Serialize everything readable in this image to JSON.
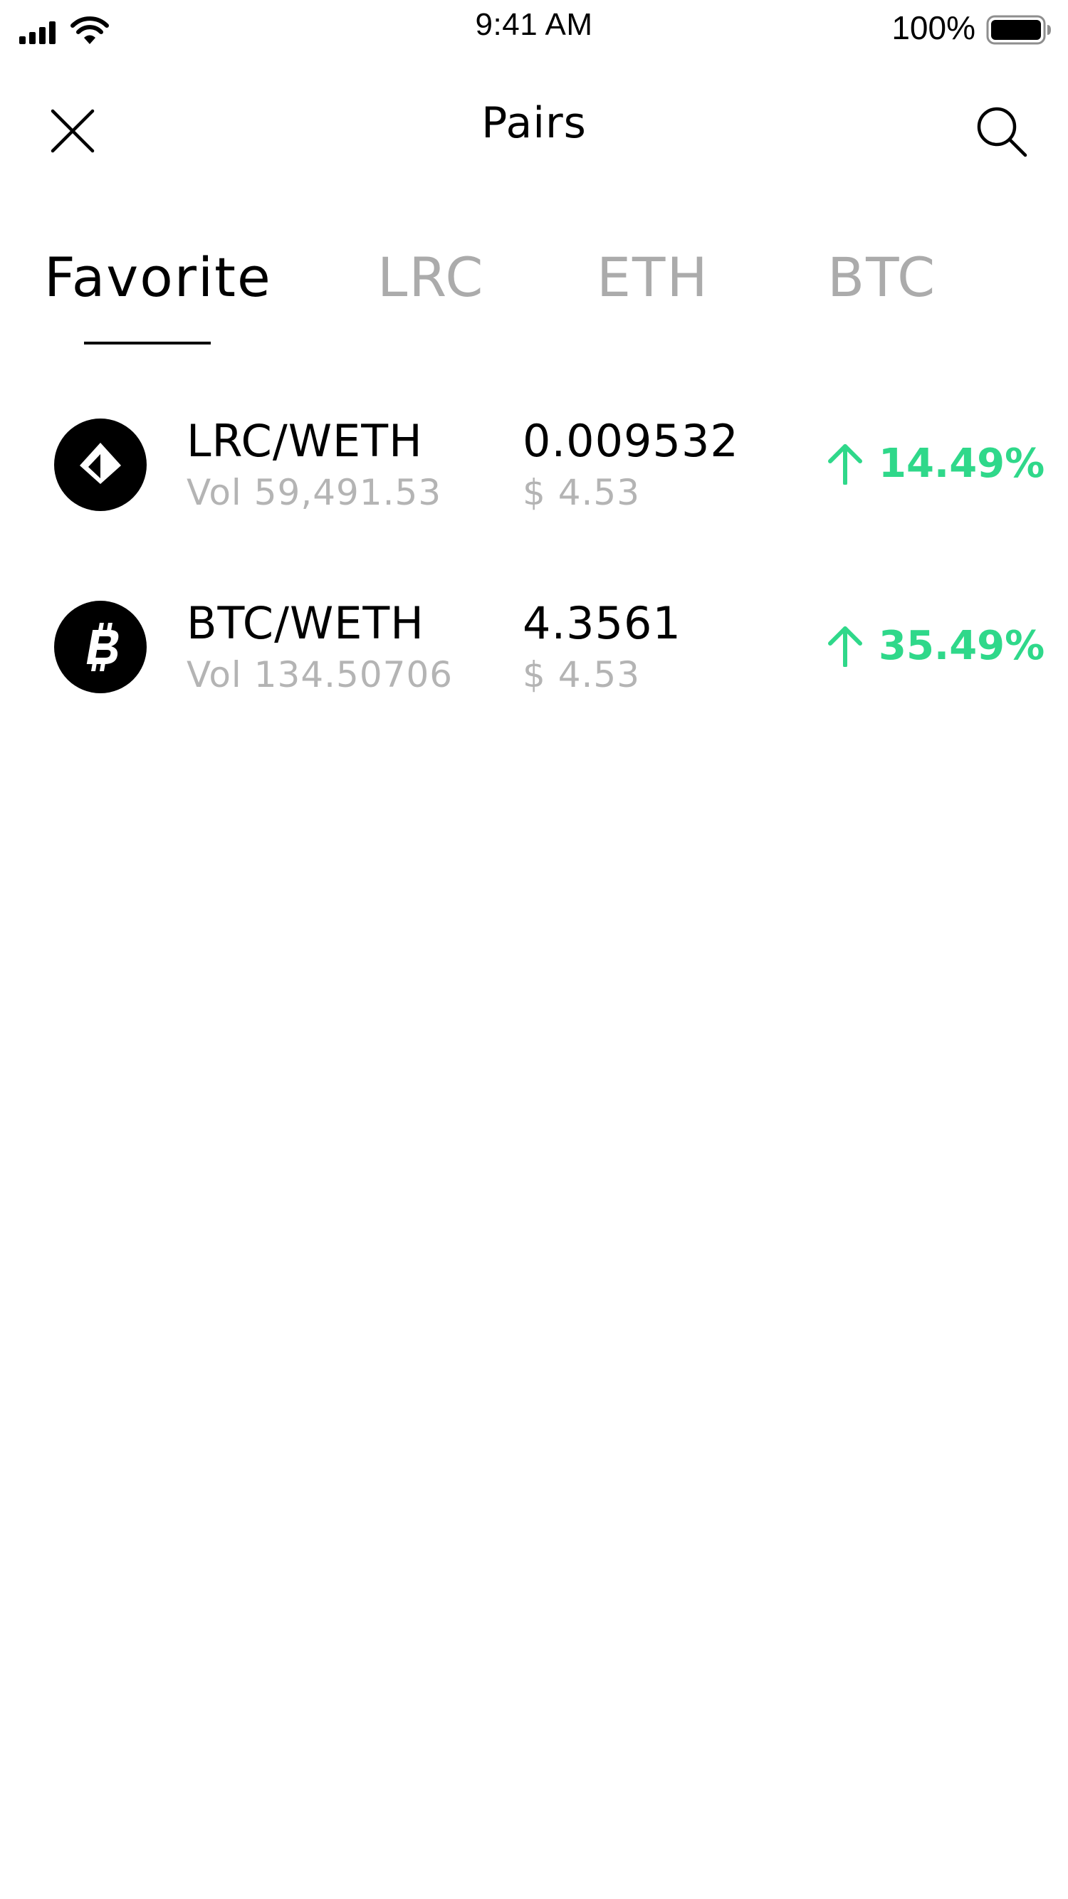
{
  "status_bar": {
    "time": "9:41 AM",
    "battery_percent": "100%",
    "battery_level": 1.0
  },
  "nav": {
    "title": "Pairs",
    "close_icon": "close-icon",
    "search_icon": "search-icon"
  },
  "tabs": [
    {
      "label": "Favorite",
      "active": true
    },
    {
      "label": "LRC",
      "active": false
    },
    {
      "label": "ETH",
      "active": false
    },
    {
      "label": "BTC",
      "active": false
    }
  ],
  "pairs": [
    {
      "icon": "loopring-icon",
      "name": "LRC/WETH",
      "volume": "Vol 59,491.53",
      "price": "0.009532",
      "usd": "$ 4.53",
      "change": "14.49%",
      "direction": "up"
    },
    {
      "icon": "bitcoin-icon",
      "name": "BTC/WETH",
      "volume": "Vol 134.50706",
      "price": "4.3561",
      "usd": "$ 4.53",
      "change": "35.49%",
      "direction": "up"
    }
  ],
  "colors": {
    "positive": "#2fd88a",
    "muted": "#b4b4b4",
    "inactive_tab": "#ababab",
    "text": "#000000",
    "background": "#ffffff"
  }
}
